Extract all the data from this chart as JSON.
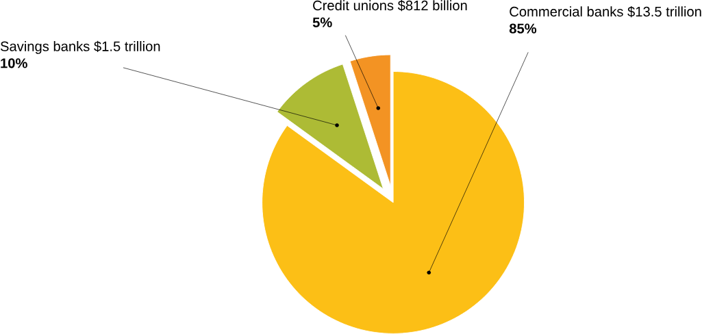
{
  "chart_data": {
    "type": "pie",
    "categories": [
      "Commercial banks $13.5 trillion",
      "Savings banks $1.5 trillion",
      "Credit unions $812 billion"
    ],
    "values": [
      85,
      10,
      5
    ],
    "value_labels": [
      "85%",
      "10%",
      "5%"
    ],
    "colors": [
      "#fcbf16",
      "#adbb35",
      "#f39323"
    ]
  }
}
